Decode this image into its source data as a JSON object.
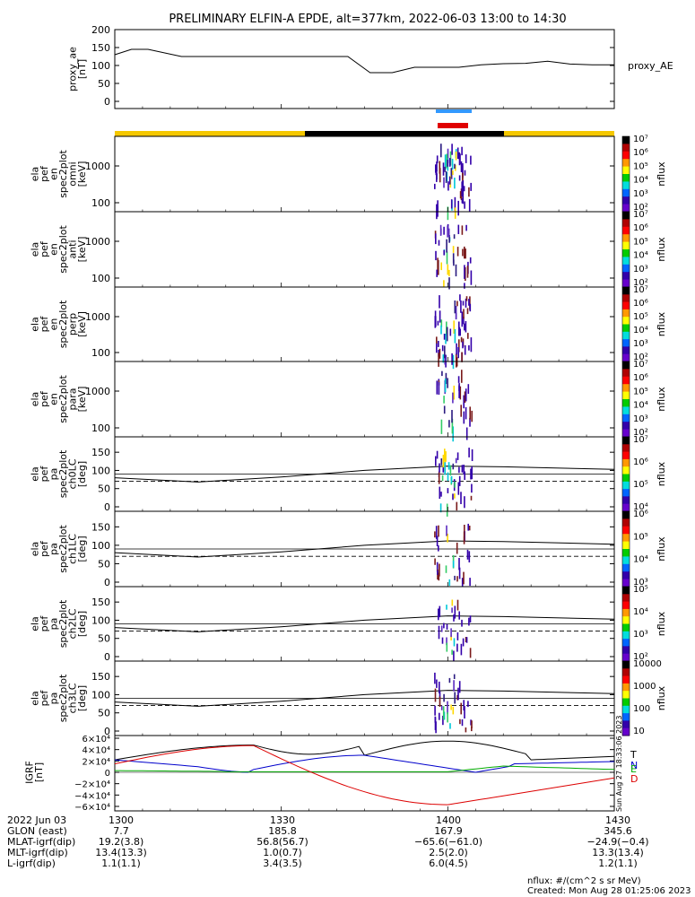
{
  "title": "PRELIMINARY ELFIN-A EPDE, alt=377km, 2022-06-03 13:00 to 14:30",
  "colors": {
    "gold": "#f5c800",
    "black": "#000000",
    "blue": "#3399ff",
    "red": "#e00000"
  },
  "chart_data": {
    "type": "line",
    "time_range": [
      "13:00",
      "14:30"
    ],
    "panels": [
      {
        "id": "proxy_ae",
        "ylabel": "proxy_ae\n[nT]",
        "right_label": "proxy_AE",
        "ylim": [
          0,
          200
        ],
        "yticks": [
          "0",
          "50",
          "100",
          "150",
          "200"
        ],
        "series": [
          {
            "x": [
              0,
              3,
              6,
              12,
              18,
              24,
              30,
              36,
              42,
              46,
              50,
              54,
              58,
              62,
              66,
              70,
              74,
              78,
              82,
              86,
              90
            ],
            "y": [
              130,
              145,
              145,
              125,
              125,
              125,
              125,
              125,
              125,
              80,
              80,
              95,
              95,
              95,
              102,
              105,
              106,
              112,
              104,
              102,
              102
            ]
          }
        ]
      },
      {
        "id": "en_omni",
        "ylabel": "ela\npef\nen\nspec2plot\nomni\n[keV]",
        "yticks": [
          "100",
          "1000"
        ],
        "cb_ticks": [
          "10⁷",
          "10⁶",
          "10⁵",
          "10⁴",
          "10³",
          "10²"
        ],
        "cb_label": "nflux"
      },
      {
        "id": "en_anti",
        "ylabel": "ela\npef\nen\nspec2plot\nanti\n[keV]",
        "yticks": [
          "100",
          "1000"
        ],
        "cb_ticks": [
          "10⁷",
          "10⁶",
          "10⁵",
          "10⁴",
          "10³",
          "10²"
        ],
        "cb_label": "nflux"
      },
      {
        "id": "en_perp",
        "ylabel": "ela\npef\nen\nspec2plot\nperp\n[keV]",
        "yticks": [
          "100",
          "1000"
        ],
        "cb_ticks": [
          "10⁷",
          "10⁶",
          "10⁵",
          "10⁴",
          "10³",
          "10²"
        ],
        "cb_label": "nflux"
      },
      {
        "id": "en_para",
        "ylabel": "ela\npef\nen\nspec2plot\npara\n[keV]",
        "yticks": [
          "100",
          "1000"
        ],
        "cb_ticks": [
          "10⁷",
          "10⁶",
          "10⁵",
          "10⁴",
          "10³",
          "10²"
        ],
        "cb_label": "nflux"
      },
      {
        "id": "pa_ch0",
        "ylabel": "ela\npef\npa\nspec2plot\nch0LC\n[deg]",
        "yticks": [
          "0",
          "50",
          "100",
          "150"
        ],
        "cb_ticks": [
          "10⁷",
          "10⁶",
          "10⁵",
          "10⁴"
        ],
        "cb_label": "nflux"
      },
      {
        "id": "pa_ch1",
        "ylabel": "ela\npef\npa\nspec2plot\nch1LC\n[deg]",
        "yticks": [
          "0",
          "50",
          "100",
          "150"
        ],
        "cb_ticks": [
          "10⁶",
          "10⁵",
          "10⁴",
          "10³"
        ],
        "cb_label": "nflux"
      },
      {
        "id": "pa_ch2",
        "ylabel": "ela\npef\npa\nspec2plot\nch2LC\n[deg]",
        "yticks": [
          "0",
          "50",
          "100",
          "150"
        ],
        "cb_ticks": [
          "10⁵",
          "10⁴",
          "10³",
          "10²"
        ],
        "cb_label": "nflux"
      },
      {
        "id": "pa_ch3",
        "ylabel": "ela\npef\npa\nspec2plot\nch3LC\n[deg]",
        "yticks": [
          "0",
          "50",
          "100",
          "150"
        ],
        "cb_ticks": [
          "10000",
          "1000",
          "100",
          "10"
        ],
        "cb_label": "nflux"
      },
      {
        "id": "igrf",
        "ylabel": "IGRF\n[nT]",
        "yticks": [
          "−6×10⁴",
          "−4×10⁴",
          "−2×10⁴",
          "0",
          "2×10⁴",
          "4×10⁴",
          "6×10⁴"
        ],
        "legend": [
          "T",
          "N",
          "E",
          "D"
        ],
        "series": [
          {
            "name": "T",
            "color": "#000000"
          },
          {
            "name": "N",
            "color": "#0000cc"
          },
          {
            "name": "E",
            "color": "#00aa00"
          },
          {
            "name": "D",
            "color": "#dd0000"
          }
        ]
      }
    ],
    "xticks": [
      "1300",
      "1330",
      "1400",
      "1430"
    ]
  },
  "footer": {
    "rows": [
      [
        "2022 Jun 03",
        "1300",
        "1330",
        "1400",
        "1430"
      ],
      [
        "GLON (east)",
        "7.7",
        "185.8",
        "167.9",
        "345.6"
      ],
      [
        "MLAT-igrf(dip)",
        "19.2(3.8)",
        "56.8(56.7)",
        "−65.6(−61.0)",
        "−24.9(−0.4)"
      ],
      [
        "MLT-igrf(dip)",
        "13.4(13.3)",
        "1.0(0.7)",
        "2.5(2.0)",
        "13.3(13.4)"
      ],
      [
        "L-igrf(dip)",
        "1.1(1.1)",
        "3.4(3.5)",
        "6.0(4.5)",
        "1.2(1.1)"
      ]
    ],
    "units": "nflux: #/(cm^2 s sr MeV)",
    "created": "Created: Mon Aug 28 01:25:06 2023",
    "side_stamp": "Sun Aug 27 18:33:06 2023"
  }
}
